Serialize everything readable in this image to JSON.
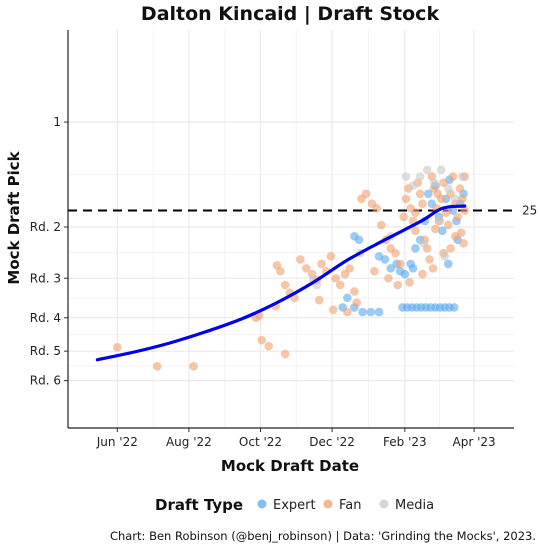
{
  "chart_data": {
    "type": "scatter",
    "title": "Dalton Kincaid  |  Draft Stock",
    "xlabel": "Mock Draft Date",
    "ylabel": "Mock Draft Pick",
    "x_axis": {
      "type": "date",
      "range": [
        "2022-04-20",
        "2023-05-05"
      ],
      "ticks": [
        {
          "date": "2022-06-01",
          "label": "Jun '22"
        },
        {
          "date": "2022-08-01",
          "label": "Aug '22"
        },
        {
          "date": "2022-10-01",
          "label": "Oct '22"
        },
        {
          "date": "2022-12-01",
          "label": "Dec '22"
        },
        {
          "date": "2023-02-01",
          "label": "Feb '23"
        },
        {
          "date": "2023-04-01",
          "label": "Apr '23"
        }
      ]
    },
    "y_axis": {
      "reversed": true,
      "scale": "sqrt",
      "range": [
        -10,
        220
      ],
      "ticks": [
        {
          "value": 1,
          "label": "1"
        },
        {
          "value": 33,
          "label": "Rd. 2"
        },
        {
          "value": 65,
          "label": "Rd. 3"
        },
        {
          "value": 97,
          "label": "Rd. 4"
        },
        {
          "value": 129,
          "label": "Rd. 5"
        },
        {
          "value": 161,
          "label": "Rd. 6"
        }
      ]
    },
    "grid": true,
    "reference_line": {
      "y": 25,
      "label": "25",
      "style": "dashed",
      "color": "#000000"
    },
    "legend": {
      "title": "Draft Type",
      "position": "bottom",
      "items": [
        {
          "label": "Expert",
          "color": "#5aaaf0"
        },
        {
          "label": "Fan",
          "color": "#f0a070"
        },
        {
          "label": "Media",
          "color": "#c8c8c8"
        }
      ]
    },
    "caption": "Chart: Ben Robinson (@benj_robinson) | Data: 'Grinding the Mocks', 2023.",
    "series": [
      {
        "name": "Expert",
        "color": "#5aaaf0",
        "points": [
          {
            "x": "2022-12-10",
            "y": 88
          },
          {
            "x": "2022-12-14",
            "y": 80
          },
          {
            "x": "2022-12-20",
            "y": 88
          },
          {
            "x": "2022-12-27",
            "y": 92
          },
          {
            "x": "2023-01-03",
            "y": 92
          },
          {
            "x": "2023-01-10",
            "y": 92
          },
          {
            "x": "2022-12-20",
            "y": 38
          },
          {
            "x": "2022-12-24",
            "y": 40
          },
          {
            "x": "2023-01-10",
            "y": 50
          },
          {
            "x": "2023-01-15",
            "y": 52
          },
          {
            "x": "2023-01-20",
            "y": 58
          },
          {
            "x": "2023-01-25",
            "y": 55
          },
          {
            "x": "2023-01-30",
            "y": 88
          },
          {
            "x": "2023-02-03",
            "y": 88
          },
          {
            "x": "2023-02-07",
            "y": 88
          },
          {
            "x": "2023-02-11",
            "y": 88
          },
          {
            "x": "2023-02-15",
            "y": 88
          },
          {
            "x": "2023-02-19",
            "y": 88
          },
          {
            "x": "2023-02-23",
            "y": 88
          },
          {
            "x": "2023-02-27",
            "y": 88
          },
          {
            "x": "2023-03-03",
            "y": 88
          },
          {
            "x": "2023-03-07",
            "y": 88
          },
          {
            "x": "2023-03-11",
            "y": 88
          },
          {
            "x": "2023-03-15",
            "y": 88
          },
          {
            "x": "2023-02-01",
            "y": 62
          },
          {
            "x": "2023-02-06",
            "y": 55
          },
          {
            "x": "2023-02-10",
            "y": 45
          },
          {
            "x": "2023-02-14",
            "y": 40
          },
          {
            "x": "2023-02-18",
            "y": 30
          },
          {
            "x": "2023-02-21",
            "y": 18
          },
          {
            "x": "2023-02-24",
            "y": 22
          },
          {
            "x": "2023-02-27",
            "y": 15
          },
          {
            "x": "2023-03-02",
            "y": 28
          },
          {
            "x": "2023-03-05",
            "y": 35
          },
          {
            "x": "2023-03-08",
            "y": 20
          },
          {
            "x": "2023-03-11",
            "y": 13
          },
          {
            "x": "2023-03-14",
            "y": 25
          },
          {
            "x": "2023-03-17",
            "y": 30
          },
          {
            "x": "2023-03-20",
            "y": 22
          },
          {
            "x": "2023-03-23",
            "y": 18
          },
          {
            "x": "2023-01-28",
            "y": 60
          },
          {
            "x": "2023-02-08",
            "y": 58
          },
          {
            "x": "2023-03-10",
            "y": 55
          },
          {
            "x": "2023-03-18",
            "y": 40
          }
        ]
      },
      {
        "name": "Fan",
        "color": "#f0a070",
        "points": [
          {
            "x": "2022-06-01",
            "y": 125
          },
          {
            "x": "2022-07-05",
            "y": 145
          },
          {
            "x": "2022-08-05",
            "y": 145
          },
          {
            "x": "2022-09-27",
            "y": 97
          },
          {
            "x": "2022-09-30",
            "y": 95
          },
          {
            "x": "2022-10-02",
            "y": 118
          },
          {
            "x": "2022-10-08",
            "y": 124
          },
          {
            "x": "2022-10-14",
            "y": 87
          },
          {
            "x": "2022-10-22",
            "y": 132
          },
          {
            "x": "2022-10-15",
            "y": 56
          },
          {
            "x": "2022-10-18",
            "y": 60
          },
          {
            "x": "2022-10-22",
            "y": 70
          },
          {
            "x": "2022-10-26",
            "y": 76
          },
          {
            "x": "2022-10-30",
            "y": 80
          },
          {
            "x": "2022-11-04",
            "y": 52
          },
          {
            "x": "2022-11-09",
            "y": 58
          },
          {
            "x": "2022-11-14",
            "y": 62
          },
          {
            "x": "2022-11-18",
            "y": 66
          },
          {
            "x": "2022-11-22",
            "y": 55
          },
          {
            "x": "2022-11-26",
            "y": 60
          },
          {
            "x": "2022-11-30",
            "y": 50
          },
          {
            "x": "2022-12-04",
            "y": 65
          },
          {
            "x": "2022-12-08",
            "y": 70
          },
          {
            "x": "2022-12-12",
            "y": 62
          },
          {
            "x": "2022-12-16",
            "y": 58
          },
          {
            "x": "2022-12-20",
            "y": 75
          },
          {
            "x": "2022-12-22",
            "y": 84
          },
          {
            "x": "2022-12-14",
            "y": 92
          },
          {
            "x": "2022-12-02",
            "y": 90
          },
          {
            "x": "2022-11-20",
            "y": 82
          },
          {
            "x": "2022-12-26",
            "y": 20
          },
          {
            "x": "2022-12-30",
            "y": 18
          },
          {
            "x": "2023-01-04",
            "y": 22
          },
          {
            "x": "2023-01-08",
            "y": 24
          },
          {
            "x": "2023-01-12",
            "y": 32
          },
          {
            "x": "2023-01-16",
            "y": 40
          },
          {
            "x": "2023-01-20",
            "y": 45
          },
          {
            "x": "2023-01-24",
            "y": 48
          },
          {
            "x": "2023-01-28",
            "y": 55
          },
          {
            "x": "2023-01-31",
            "y": 28
          },
          {
            "x": "2023-02-02",
            "y": 20
          },
          {
            "x": "2023-02-04",
            "y": 16
          },
          {
            "x": "2023-02-06",
            "y": 24
          },
          {
            "x": "2023-02-08",
            "y": 30
          },
          {
            "x": "2023-02-10",
            "y": 35
          },
          {
            "x": "2023-02-12",
            "y": 14
          },
          {
            "x": "2023-02-14",
            "y": 18
          },
          {
            "x": "2023-02-16",
            "y": 22
          },
          {
            "x": "2023-02-18",
            "y": 40
          },
          {
            "x": "2023-02-20",
            "y": 45
          },
          {
            "x": "2023-02-22",
            "y": 52
          },
          {
            "x": "2023-02-24",
            "y": 12
          },
          {
            "x": "2023-02-26",
            "y": 16
          },
          {
            "x": "2023-02-28",
            "y": 24
          },
          {
            "x": "2023-03-02",
            "y": 30
          },
          {
            "x": "2023-03-04",
            "y": 20
          },
          {
            "x": "2023-03-06",
            "y": 14
          },
          {
            "x": "2023-03-08",
            "y": 26
          },
          {
            "x": "2023-03-10",
            "y": 32
          },
          {
            "x": "2023-03-12",
            "y": 18
          },
          {
            "x": "2023-03-14",
            "y": 12
          },
          {
            "x": "2023-03-16",
            "y": 22
          },
          {
            "x": "2023-03-18",
            "y": 28
          },
          {
            "x": "2023-03-20",
            "y": 16
          },
          {
            "x": "2023-03-22",
            "y": 20
          },
          {
            "x": "2023-03-24",
            "y": 25
          },
          {
            "x": "2023-03-24",
            "y": 12
          },
          {
            "x": "2023-03-23",
            "y": 42
          },
          {
            "x": "2023-03-21",
            "y": 36
          },
          {
            "x": "2023-03-12",
            "y": 45
          },
          {
            "x": "2023-03-06",
            "y": 48
          },
          {
            "x": "2023-02-25",
            "y": 58
          },
          {
            "x": "2023-02-16",
            "y": 62
          },
          {
            "x": "2023-02-05",
            "y": 68
          },
          {
            "x": "2023-01-26",
            "y": 70
          },
          {
            "x": "2023-01-18",
            "y": 65
          },
          {
            "x": "2023-01-06",
            "y": 60
          },
          {
            "x": "2023-02-27",
            "y": 34
          },
          {
            "x": "2023-03-16",
            "y": 38
          },
          {
            "x": "2023-02-10",
            "y": 26
          },
          {
            "x": "2023-03-01",
            "y": 18
          }
        ]
      },
      {
        "name": "Media",
        "color": "#c8c8c8",
        "points": [
          {
            "x": "2022-11-15",
            "y": 66
          },
          {
            "x": "2022-11-18",
            "y": 70
          },
          {
            "x": "2022-12-25",
            "y": 48
          },
          {
            "x": "2023-01-20",
            "y": 38
          },
          {
            "x": "2023-02-02",
            "y": 12
          },
          {
            "x": "2023-02-08",
            "y": 15
          },
          {
            "x": "2023-02-14",
            "y": 12
          },
          {
            "x": "2023-02-20",
            "y": 10
          },
          {
            "x": "2023-02-26",
            "y": 14
          },
          {
            "x": "2023-03-04",
            "y": 10
          },
          {
            "x": "2023-03-10",
            "y": 16
          },
          {
            "x": "2023-03-16",
            "y": 20
          },
          {
            "x": "2023-03-22",
            "y": 12
          },
          {
            "x": "2023-03-03",
            "y": 30
          },
          {
            "x": "2023-03-13",
            "y": 24
          },
          {
            "x": "2023-02-17",
            "y": 42
          },
          {
            "x": "2023-03-07",
            "y": 50
          }
        ]
      }
    ],
    "trend_line": {
      "color": "#0000ee",
      "points": [
        {
          "x": "2022-05-15",
          "y": 138
        },
        {
          "x": "2022-06-15",
          "y": 130
        },
        {
          "x": "2022-07-15",
          "y": 121
        },
        {
          "x": "2022-08-15",
          "y": 110
        },
        {
          "x": "2022-09-15",
          "y": 98
        },
        {
          "x": "2022-10-15",
          "y": 84
        },
        {
          "x": "2022-11-15",
          "y": 68
        },
        {
          "x": "2022-12-15",
          "y": 52
        },
        {
          "x": "2023-01-15",
          "y": 40
        },
        {
          "x": "2023-02-15",
          "y": 30
        },
        {
          "x": "2023-03-05",
          "y": 24
        },
        {
          "x": "2023-03-24",
          "y": 23
        }
      ]
    }
  }
}
